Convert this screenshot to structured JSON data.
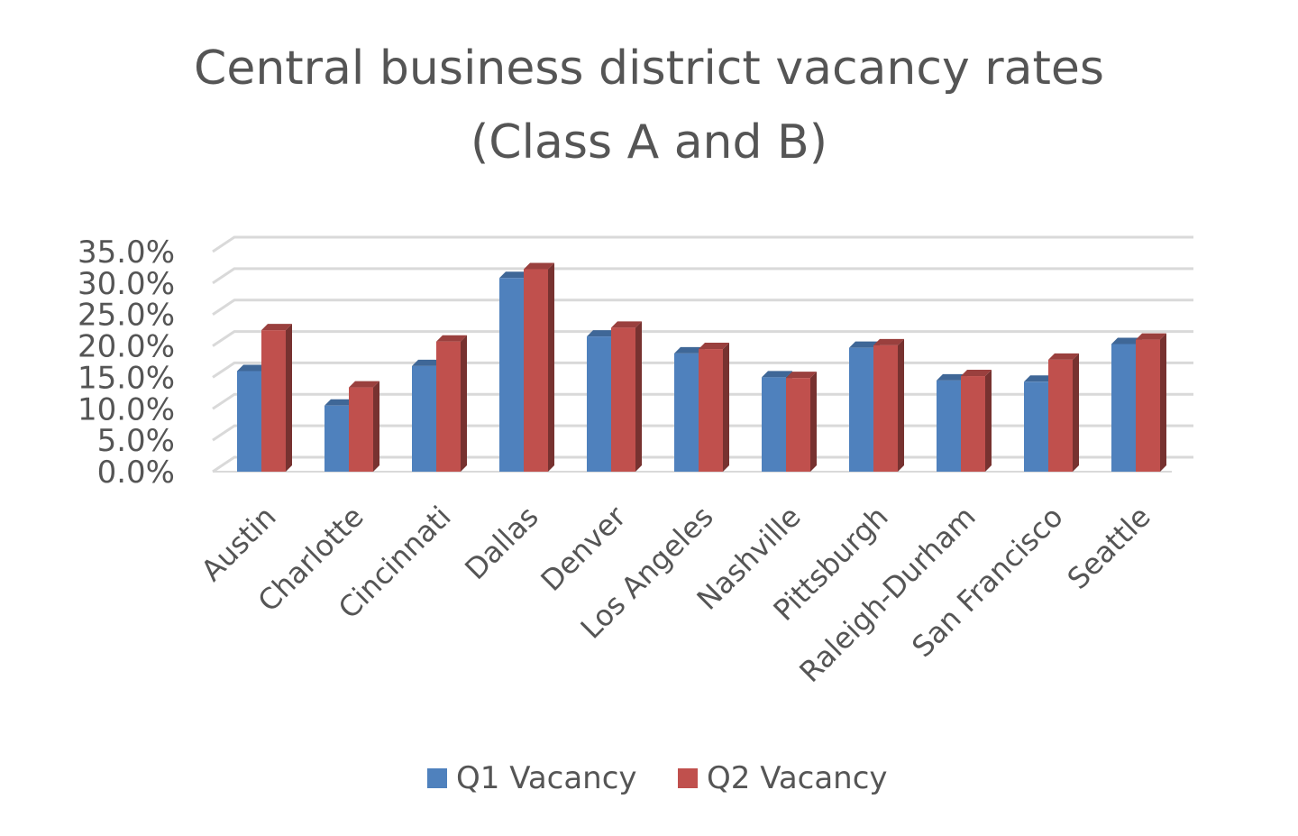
{
  "chart_data": {
    "type": "bar",
    "title": [
      "Central business district vacancy rates",
      "(Class A and B)"
    ],
    "categories": [
      "Austin",
      "Charlotte",
      "Cincinnati",
      "Dallas",
      "Denver",
      "Los Angeles",
      "Nashville",
      "Pittsburgh",
      "Raleigh-Durham",
      "San Francisco",
      "Seattle"
    ],
    "series": [
      {
        "name": "Q1 Vacancy",
        "color": "#4F81BD",
        "values": [
          16.0,
          10.5,
          16.8,
          30.8,
          21.5,
          18.8,
          15.0,
          19.7,
          14.5,
          14.3,
          20.3
        ]
      },
      {
        "name": "Q2 Vacancy",
        "color": "#C0504D",
        "values": [
          22.5,
          13.4,
          20.7,
          32.2,
          22.9,
          19.5,
          14.9,
          20.1,
          15.2,
          17.8,
          21.0
        ]
      }
    ],
    "y_ticks": [
      "0.0%",
      "5.0%",
      "10.0%",
      "15.0%",
      "20.0%",
      "25.0%",
      "30.0%",
      "35.0%"
    ],
    "ylim": [
      0,
      35
    ],
    "xlabel": "",
    "ylabel": "",
    "grid": true,
    "legend_position": "bottom",
    "style": "3d-column"
  }
}
